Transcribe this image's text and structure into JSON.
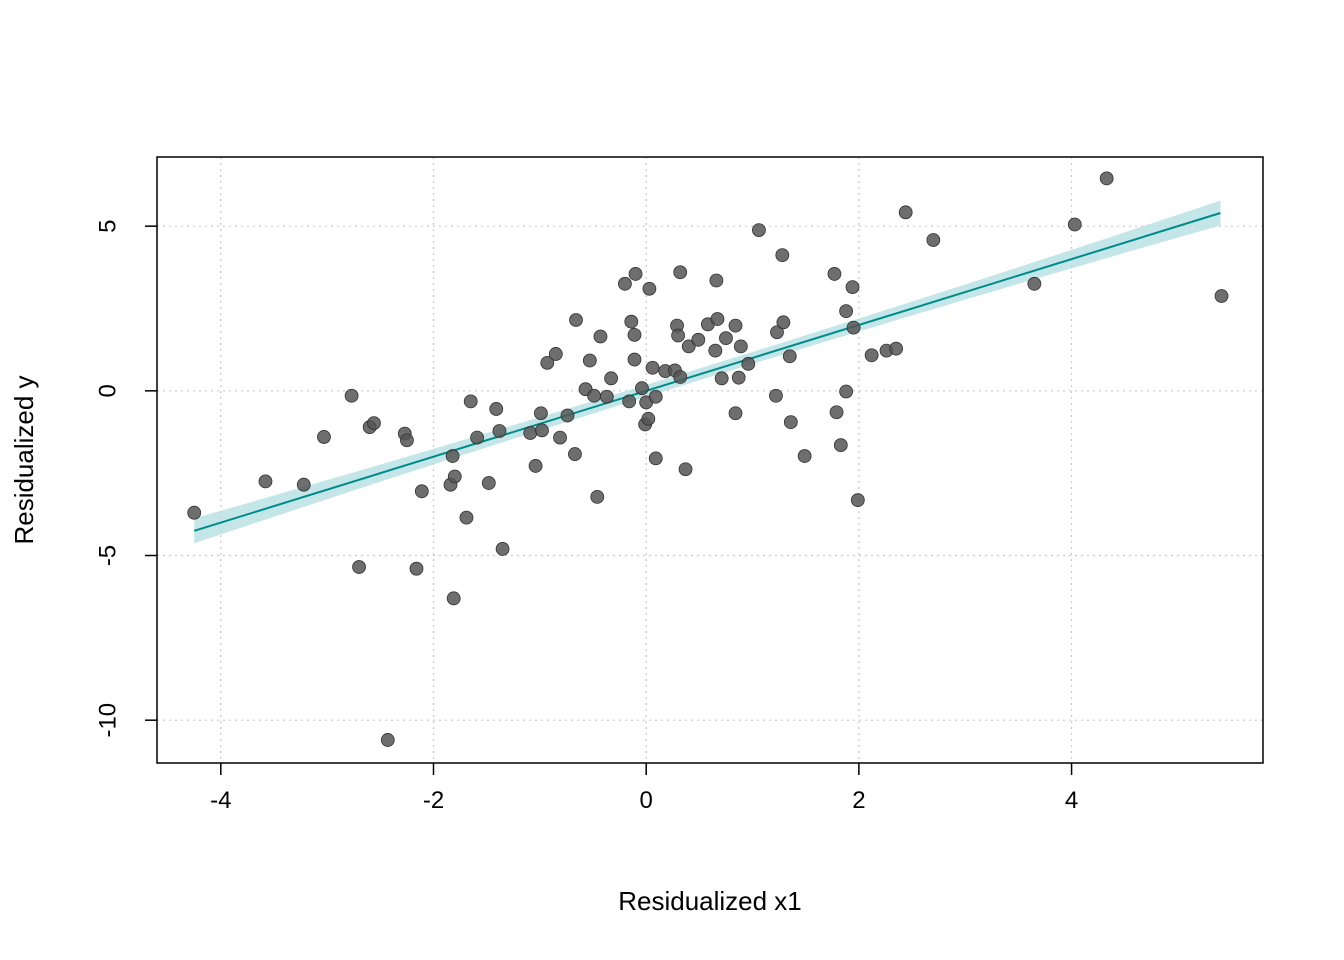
{
  "chart_data": {
    "type": "scatter",
    "title": "",
    "xlabel": "Residualized x1",
    "ylabel": "Residualized y",
    "xlim": [
      -4.6,
      5.8
    ],
    "ylim": [
      -11.3,
      7.1
    ],
    "xticks": [
      -4,
      -2,
      0,
      2,
      4
    ],
    "yticks": [
      -10,
      -5,
      0,
      5
    ],
    "xtick_labels": [
      "-4",
      "-2",
      "0",
      "2",
      "4"
    ],
    "ytick_labels": [
      "-10",
      "-5",
      "0",
      "5"
    ],
    "grid": true,
    "colors": {
      "points": "#555555",
      "fit_line": "#008b8b",
      "confidence_band": "#b0dde0",
      "grid": "#c8c8c8",
      "frame": "#000000"
    },
    "fit": {
      "x_range": [
        -4.25,
        5.4
      ],
      "intercept": 0.0,
      "slope": 1.0,
      "band_halfwidth_at_center": 0.18,
      "band_halfwidth_at_ends": 0.38
    },
    "points": [
      [
        -4.25,
        -3.7
      ],
      [
        -3.58,
        -2.75
      ],
      [
        -3.22,
        -2.85
      ],
      [
        -3.03,
        -1.4
      ],
      [
        -2.77,
        -0.15
      ],
      [
        -2.7,
        -5.35
      ],
      [
        -2.6,
        -1.1
      ],
      [
        -2.56,
        -0.98
      ],
      [
        -2.43,
        -10.6
      ],
      [
        -2.27,
        -1.3
      ],
      [
        -2.25,
        -1.5
      ],
      [
        -2.16,
        -5.4
      ],
      [
        -2.11,
        -3.05
      ],
      [
        -1.84,
        -2.85
      ],
      [
        -1.82,
        -1.98
      ],
      [
        -1.8,
        -2.6
      ],
      [
        -1.81,
        -6.3
      ],
      [
        -1.69,
        -3.85
      ],
      [
        -1.65,
        -0.32
      ],
      [
        -1.59,
        -1.42
      ],
      [
        -1.48,
        -2.8
      ],
      [
        -1.41,
        -0.55
      ],
      [
        -1.38,
        -1.22
      ],
      [
        -1.35,
        -4.8
      ],
      [
        -1.09,
        -1.28
      ],
      [
        -1.04,
        -2.28
      ],
      [
        -0.99,
        -0.68
      ],
      [
        -0.98,
        -1.2
      ],
      [
        -0.93,
        0.85
      ],
      [
        -0.85,
        1.12
      ],
      [
        -0.81,
        -1.42
      ],
      [
        -0.74,
        -0.75
      ],
      [
        -0.67,
        -1.92
      ],
      [
        -0.66,
        2.15
      ],
      [
        -0.57,
        0.05
      ],
      [
        -0.53,
        0.92
      ],
      [
        -0.49,
        -0.15
      ],
      [
        -0.46,
        -3.22
      ],
      [
        -0.43,
        1.65
      ],
      [
        -0.37,
        -0.18
      ],
      [
        -0.33,
        0.38
      ],
      [
        -0.2,
        3.25
      ],
      [
        -0.16,
        -0.32
      ],
      [
        -0.14,
        2.1
      ],
      [
        -0.11,
        1.7
      ],
      [
        -0.11,
        0.95
      ],
      [
        -0.1,
        3.55
      ],
      [
        -0.04,
        0.08
      ],
      [
        -0.01,
        -1.02
      ],
      [
        0.0,
        -0.35
      ],
      [
        0.02,
        -0.85
      ],
      [
        0.03,
        3.1
      ],
      [
        0.06,
        0.7
      ],
      [
        0.09,
        -0.18
      ],
      [
        0.09,
        -2.05
      ],
      [
        0.18,
        0.6
      ],
      [
        0.27,
        0.62
      ],
      [
        0.29,
        1.98
      ],
      [
        0.3,
        1.68
      ],
      [
        0.32,
        3.6
      ],
      [
        0.32,
        0.42
      ],
      [
        0.37,
        -2.38
      ],
      [
        0.4,
        1.35
      ],
      [
        0.49,
        1.55
      ],
      [
        0.58,
        2.02
      ],
      [
        0.65,
        1.22
      ],
      [
        0.66,
        3.35
      ],
      [
        0.67,
        2.18
      ],
      [
        0.71,
        0.38
      ],
      [
        0.75,
        1.6
      ],
      [
        0.84,
        1.98
      ],
      [
        0.84,
        -0.68
      ],
      [
        0.87,
        0.4
      ],
      [
        0.89,
        1.35
      ],
      [
        0.96,
        0.82
      ],
      [
        1.06,
        4.88
      ],
      [
        1.22,
        -0.15
      ],
      [
        1.23,
        1.78
      ],
      [
        1.28,
        4.12
      ],
      [
        1.29,
        2.08
      ],
      [
        1.35,
        1.05
      ],
      [
        1.36,
        -0.95
      ],
      [
        1.49,
        -1.98
      ],
      [
        1.77,
        3.55
      ],
      [
        1.79,
        -0.65
      ],
      [
        1.83,
        -1.65
      ],
      [
        1.88,
        2.42
      ],
      [
        1.88,
        -0.02
      ],
      [
        1.94,
        3.15
      ],
      [
        1.95,
        1.92
      ],
      [
        1.99,
        -3.32
      ],
      [
        2.12,
        1.08
      ],
      [
        2.26,
        1.22
      ],
      [
        2.35,
        1.28
      ],
      [
        2.44,
        5.42
      ],
      [
        2.7,
        4.58
      ],
      [
        3.65,
        3.25
      ],
      [
        4.03,
        5.05
      ],
      [
        4.33,
        6.45
      ],
      [
        5.41,
        2.88
      ]
    ]
  }
}
